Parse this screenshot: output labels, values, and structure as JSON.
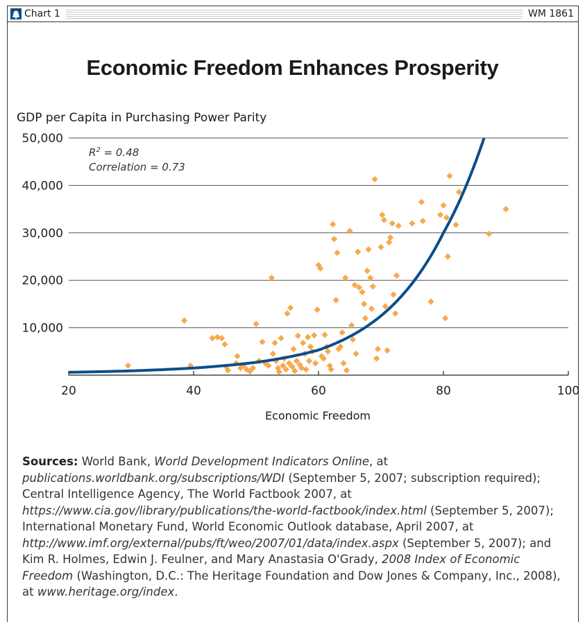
{
  "header": {
    "tab_label": "Chart 1",
    "code": "WM 1861",
    "bell_icon_color": "#0a4d8c"
  },
  "chart_data": {
    "type": "scatter",
    "title": "Economic Freedom Enhances Prosperity",
    "ylabel": "GDP per Capita in Purchasing Power Parity",
    "xlabel": "Economic Freedom",
    "xlim": [
      20,
      100
    ],
    "ylim": [
      0,
      50000
    ],
    "x_ticks": [
      "20",
      "40",
      "60",
      "80",
      "100"
    ],
    "y_ticks": [
      "10,000",
      "20,000",
      "30,000",
      "40,000",
      "50,000"
    ],
    "grid": "horizontal",
    "annotations": [
      "R2 = 0.48",
      "Correlation = 0.73"
    ],
    "point_color": "#f6a94d",
    "fit_color": "#0a4d8c",
    "trend_fit": {
      "type": "exponential",
      "x": [
        20,
        30,
        40,
        50,
        60,
        70,
        80,
        86.5
      ],
      "y": [
        600,
        900,
        1500,
        2700,
        5300,
        12500,
        30000,
        50000
      ]
    },
    "series": [
      {
        "values": [
          [
            29.5,
            2000
          ],
          [
            38.5,
            11500
          ],
          [
            39.5,
            2000
          ],
          [
            43.0,
            7800
          ],
          [
            43.8,
            8000
          ],
          [
            44.5,
            7800
          ],
          [
            45.0,
            6500
          ],
          [
            45.2,
            1800
          ],
          [
            45.5,
            1000
          ],
          [
            46.8,
            2500
          ],
          [
            47.0,
            4000
          ],
          [
            47.5,
            1500
          ],
          [
            48.0,
            2000
          ],
          [
            48.5,
            1200
          ],
          [
            49.0,
            800
          ],
          [
            49.5,
            1500
          ],
          [
            50.0,
            10800
          ],
          [
            50.5,
            3000
          ],
          [
            51.0,
            7000
          ],
          [
            51.5,
            2500
          ],
          [
            52.0,
            2000
          ],
          [
            52.5,
            20500
          ],
          [
            52.7,
            4500
          ],
          [
            53.0,
            6800
          ],
          [
            53.2,
            3000
          ],
          [
            53.5,
            1500
          ],
          [
            53.7,
            700
          ],
          [
            54.0,
            7800
          ],
          [
            54.3,
            2000
          ],
          [
            54.5,
            3500
          ],
          [
            54.8,
            1200
          ],
          [
            55.0,
            13000
          ],
          [
            55.3,
            2500
          ],
          [
            55.5,
            14200
          ],
          [
            55.8,
            1800
          ],
          [
            56.0,
            5500
          ],
          [
            56.2,
            900
          ],
          [
            56.5,
            3000
          ],
          [
            56.7,
            8300
          ],
          [
            57.0,
            2200
          ],
          [
            57.3,
            1500
          ],
          [
            57.5,
            6800
          ],
          [
            57.8,
            4500
          ],
          [
            58.0,
            1200
          ],
          [
            58.3,
            8000
          ],
          [
            58.5,
            3000
          ],
          [
            58.7,
            6000
          ],
          [
            59.0,
            5000
          ],
          [
            59.3,
            8400
          ],
          [
            59.5,
            2500
          ],
          [
            59.8,
            13800
          ],
          [
            60.0,
            23200
          ],
          [
            60.3,
            22500
          ],
          [
            60.5,
            4000
          ],
          [
            60.8,
            3500
          ],
          [
            61.0,
            8500
          ],
          [
            61.3,
            6000
          ],
          [
            61.5,
            5000
          ],
          [
            61.8,
            2000
          ],
          [
            62.0,
            1200
          ],
          [
            62.3,
            31800
          ],
          [
            62.5,
            28700
          ],
          [
            62.8,
            15800
          ],
          [
            63.0,
            25800
          ],
          [
            63.2,
            5500
          ],
          [
            63.5,
            6000
          ],
          [
            63.8,
            9000
          ],
          [
            64.0,
            2500
          ],
          [
            64.3,
            20500
          ],
          [
            64.5,
            1000
          ],
          [
            65.0,
            30400
          ],
          [
            65.3,
            10500
          ],
          [
            65.5,
            7500
          ],
          [
            65.8,
            19000
          ],
          [
            66.0,
            4500
          ],
          [
            66.3,
            26000
          ],
          [
            66.5,
            18500
          ],
          [
            67.0,
            17500
          ],
          [
            67.3,
            15000
          ],
          [
            67.5,
            12000
          ],
          [
            67.8,
            22000
          ],
          [
            68.0,
            26500
          ],
          [
            68.3,
            20500
          ],
          [
            68.5,
            14000
          ],
          [
            68.7,
            18700
          ],
          [
            69.0,
            41300
          ],
          [
            69.3,
            3500
          ],
          [
            69.5,
            5500
          ],
          [
            70.0,
            27000
          ],
          [
            70.2,
            33800
          ],
          [
            70.5,
            32700
          ],
          [
            70.7,
            14500
          ],
          [
            71.0,
            5200
          ],
          [
            71.3,
            28000
          ],
          [
            71.5,
            29000
          ],
          [
            71.8,
            32000
          ],
          [
            72.0,
            17000
          ],
          [
            72.3,
            13000
          ],
          [
            72.5,
            21000
          ],
          [
            72.8,
            31500
          ],
          [
            75.0,
            32000
          ],
          [
            76.5,
            36500
          ],
          [
            76.7,
            32500
          ],
          [
            78.0,
            15500
          ],
          [
            79.5,
            33800
          ],
          [
            80.0,
            35800
          ],
          [
            80.3,
            12000
          ],
          [
            80.5,
            33200
          ],
          [
            80.7,
            25000
          ],
          [
            81.0,
            42000
          ],
          [
            82.0,
            31700
          ],
          [
            82.5,
            38600
          ],
          [
            87.3,
            29800
          ],
          [
            90.0,
            35000
          ]
        ]
      }
    ]
  },
  "sources": {
    "label": "Sources:",
    "t1": " World Bank, ",
    "i1": "World Development Indicators Online",
    "t2": ", at ",
    "i2": "publications.worldbank.org/subscriptions/WDI",
    "t3": " (September 5, 2007; subscription required); Central Intelligence Agency, The World Factbook 2007, at ",
    "i3": "https://www.cia.gov/library/publications/the-world-factbook/index.html",
    "t4": " (September 5, 2007); International Monetary Fund, World Economic Outlook database, April 2007, at ",
    "i4": "http://www.imf.org/external/pubs/ft/weo/2007/01/data/index.aspx",
    "t5": " (September 5, 2007); and Kim R. Holmes, Edwin J. Feulner, and Mary Anastasia O'Grady, ",
    "i5": "2008 Index of Economic Freedom",
    "t6": " (Washington, D.C.: The Heritage Foundation and Dow Jones & Company, Inc., 2008), at ",
    "i6": "www.heritage.org/index",
    "t7": "."
  }
}
